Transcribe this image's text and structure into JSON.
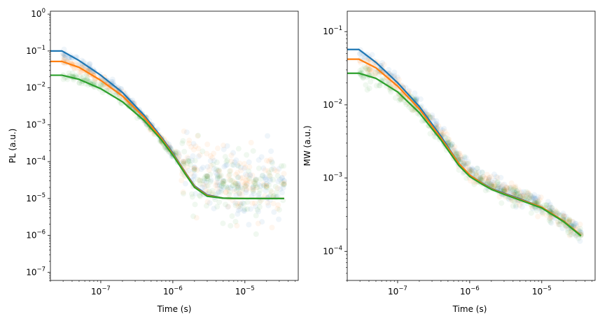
{
  "colors": {
    "series": [
      "#1f77b4",
      "#ff7f0e",
      "#2ca02c"
    ],
    "axis": "#000000",
    "background": "#ffffff"
  },
  "chart_data": [
    {
      "type": "scatter",
      "panel": "left",
      "xlabel": "Time (s)",
      "ylabel": "PL (a.u.)",
      "xscale": "log",
      "yscale": "log",
      "xlim": [
        2e-08,
        5.5e-05
      ],
      "ylim": [
        6e-08,
        1.2
      ],
      "grid": false,
      "legend": "none",
      "x_ticks": [
        {
          "value": 1e-07,
          "base": "10",
          "exp": "−7"
        },
        {
          "value": 1e-06,
          "base": "10",
          "exp": "−6"
        },
        {
          "value": 1e-05,
          "base": "10",
          "exp": "−5"
        }
      ],
      "y_ticks": [
        {
          "value": 1e-07,
          "base": "10",
          "exp": "−7"
        },
        {
          "value": 1e-06,
          "base": "10",
          "exp": "−6"
        },
        {
          "value": 1e-05,
          "base": "10",
          "exp": "−5"
        },
        {
          "value": 0.0001,
          "base": "10",
          "exp": "−4"
        },
        {
          "value": 0.001,
          "base": "10",
          "exp": "−3"
        },
        {
          "value": 0.01,
          "base": "10",
          "exp": "−2"
        },
        {
          "value": 0.1,
          "base": "10",
          "exp": "−1"
        },
        {
          "value": 1,
          "base": "10",
          "exp": "0"
        }
      ],
      "series": [
        {
          "color": "#1f77b4",
          "fit_x": [
            2e-08,
            2.9e-08,
            5e-08,
            1e-07,
            2e-07,
            4e-07,
            7e-07,
            1e-06,
            1.5e-06,
            2e-06,
            3e-06,
            5e-06,
            1e-05,
            3.5e-05
          ],
          "fit_y": [
            0.1,
            0.1,
            0.055,
            0.022,
            0.0075,
            0.0018,
            0.00045,
            0.00017,
            5e-05,
            2.2e-05,
            1.25e-05,
            1.02e-05,
            1e-05,
            1e-05
          ],
          "scatter_x": [
            3e-08,
            4e-08,
            6e-08,
            8e-08,
            1.2e-07,
            1.8e-07,
            2.5e-07,
            3.5e-07,
            5e-07,
            7e-07,
            1e-06,
            1.4e-06,
            2e-06,
            3e-06,
            5e-06,
            8e-06,
            1.3e-05,
            2e-05,
            3.5e-05
          ],
          "scatter_y": [
            0.085,
            0.065,
            0.04,
            0.028,
            0.016,
            0.0085,
            0.0045,
            0.0022,
            0.0009,
            0.0004,
            0.00018,
            0.0001,
            7e-05,
            4e-05,
            3e-05,
            2.5e-05,
            2e-05,
            2.5e-05,
            3e-05
          ]
        },
        {
          "color": "#ff7f0e",
          "fit_x": [
            2e-08,
            2.9e-08,
            5e-08,
            1e-07,
            2e-07,
            4e-07,
            7e-07,
            1e-06,
            1.5e-06,
            2e-06,
            3e-06,
            5e-06,
            1e-05,
            3.5e-05
          ],
          "fit_y": [
            0.052,
            0.052,
            0.036,
            0.016,
            0.006,
            0.0016,
            0.00042,
            0.00016,
            4.8e-05,
            2.1e-05,
            1.2e-05,
            1.02e-05,
            1e-05,
            1e-05
          ],
          "scatter_x": [
            3e-08,
            4e-08,
            6e-08,
            8e-08,
            1.2e-07,
            1.8e-07,
            2.5e-07,
            3.5e-07,
            5e-07,
            7e-07,
            1e-06,
            1.4e-06,
            2e-06,
            3e-06,
            5e-06,
            8e-06,
            1.3e-05,
            2e-05,
            3.5e-05
          ],
          "scatter_y": [
            0.05,
            0.042,
            0.03,
            0.021,
            0.013,
            0.0072,
            0.004,
            0.002,
            0.00085,
            0.00038,
            0.00017,
            0.0001,
            6.5e-05,
            4e-05,
            2.8e-05,
            2.2e-05,
            1.8e-05,
            2.2e-05,
            2.6e-05
          ]
        },
        {
          "color": "#2ca02c",
          "fit_x": [
            2e-08,
            2.9e-08,
            5e-08,
            1e-07,
            2e-07,
            4e-07,
            7e-07,
            1e-06,
            1.5e-06,
            2e-06,
            3e-06,
            5e-06,
            1e-05,
            3.5e-05
          ],
          "fit_y": [
            0.022,
            0.022,
            0.017,
            0.0095,
            0.0042,
            0.0013,
            0.00038,
            0.00015,
            4.5e-05,
            2e-05,
            1.15e-05,
            1.02e-05,
            1e-05,
            1e-05
          ],
          "scatter_x": [
            3e-08,
            4e-08,
            6e-08,
            8e-08,
            1.2e-07,
            1.8e-07,
            2.5e-07,
            3.5e-07,
            5e-07,
            7e-07,
            1e-06,
            1.4e-06,
            2e-06,
            3e-06,
            5e-06,
            8e-06,
            1.3e-05,
            2e-05,
            3.5e-05
          ],
          "scatter_y": [
            0.022,
            0.02,
            0.016,
            0.012,
            0.0085,
            0.0052,
            0.0031,
            0.0017,
            0.00075,
            0.00035,
            0.00016,
            9e-05,
            6e-05,
            3.5e-05,
            2.5e-05,
            2e-05,
            1.6e-05,
            2e-05,
            2.4e-05
          ]
        }
      ]
    },
    {
      "type": "scatter",
      "panel": "right",
      "xlabel": "Time (s)",
      "ylabel": "MW (a.u.)",
      "xscale": "log",
      "yscale": "log",
      "xlim": [
        2e-08,
        5.5e-05
      ],
      "ylim": [
        4e-05,
        0.19
      ],
      "grid": false,
      "legend": "none",
      "x_ticks": [
        {
          "value": 1e-07,
          "base": "10",
          "exp": "−7"
        },
        {
          "value": 1e-06,
          "base": "10",
          "exp": "−6"
        },
        {
          "value": 1e-05,
          "base": "10",
          "exp": "−5"
        }
      ],
      "y_ticks": [
        {
          "value": 0.0001,
          "base": "10",
          "exp": "−4"
        },
        {
          "value": 0.001,
          "base": "10",
          "exp": "−3"
        },
        {
          "value": 0.01,
          "base": "10",
          "exp": "−2"
        },
        {
          "value": 0.1,
          "base": "10",
          "exp": "−1"
        }
      ],
      "series": [
        {
          "color": "#1f77b4",
          "fit_x": [
            2e-08,
            2.9e-08,
            5e-08,
            1e-07,
            2e-07,
            4e-07,
            7e-07,
            1e-06,
            1.5e-06,
            2e-06,
            3e-06,
            5e-06,
            1e-05,
            2e-05,
            3.5e-05
          ],
          "fit_y": [
            0.057,
            0.057,
            0.038,
            0.02,
            0.0095,
            0.0037,
            0.0016,
            0.0011,
            0.00085,
            0.00072,
            0.00062,
            0.00052,
            0.0004,
            0.00026,
            0.000165
          ],
          "scatter_x": [
            3e-08,
            4e-08,
            6e-08,
            8e-08,
            1.2e-07,
            1.8e-07,
            2.5e-07,
            3.5e-07,
            5e-07,
            7e-07,
            1e-06,
            1.4e-06,
            2e-06,
            3e-06,
            5e-06,
            8e-06,
            1.3e-05,
            2e-05,
            3.5e-05
          ],
          "scatter_y": [
            0.05,
            0.042,
            0.032,
            0.025,
            0.017,
            0.011,
            0.0075,
            0.0048,
            0.003,
            0.0019,
            0.0013,
            0.001,
            0.00082,
            0.0007,
            0.00057,
            0.00046,
            0.00036,
            0.00027,
            0.00018
          ]
        },
        {
          "color": "#ff7f0e",
          "fit_x": [
            2e-08,
            2.9e-08,
            5e-08,
            1e-07,
            2e-07,
            4e-07,
            7e-07,
            1e-06,
            1.5e-06,
            2e-06,
            3e-06,
            5e-06,
            1e-05,
            2e-05,
            3.5e-05
          ],
          "fit_y": [
            0.042,
            0.042,
            0.032,
            0.018,
            0.0088,
            0.0035,
            0.0016,
            0.0011,
            0.00084,
            0.00071,
            0.00061,
            0.00051,
            0.0004,
            0.00026,
            0.000165
          ],
          "scatter_x": [
            3e-08,
            4e-08,
            6e-08,
            8e-08,
            1.2e-07,
            1.8e-07,
            2.5e-07,
            3.5e-07,
            5e-07,
            7e-07,
            1e-06,
            1.4e-06,
            2e-06,
            3e-06,
            5e-06,
            8e-06,
            1.3e-05,
            2e-05,
            3.5e-05
          ],
          "scatter_y": [
            0.04,
            0.035,
            0.028,
            0.022,
            0.015,
            0.0098,
            0.0068,
            0.0044,
            0.0028,
            0.0018,
            0.00125,
            0.00097,
            0.0008,
            0.00068,
            0.00056,
            0.00045,
            0.00035,
            0.00026,
            0.00017
          ]
        },
        {
          "color": "#2ca02c",
          "fit_x": [
            2e-08,
            2.9e-08,
            5e-08,
            1e-07,
            2e-07,
            4e-07,
            7e-07,
            1e-06,
            1.5e-06,
            2e-06,
            3e-06,
            5e-06,
            1e-05,
            2e-05,
            3.5e-05
          ],
          "fit_y": [
            0.027,
            0.027,
            0.023,
            0.015,
            0.0078,
            0.0033,
            0.0015,
            0.00105,
            0.00082,
            0.0007,
            0.0006,
            0.0005,
            0.00039,
            0.000255,
            0.000162
          ],
          "scatter_x": [
            3e-08,
            4e-08,
            6e-08,
            8e-08,
            1.2e-07,
            1.8e-07,
            2.5e-07,
            3.5e-07,
            5e-07,
            7e-07,
            1e-06,
            1.4e-06,
            2e-06,
            3e-06,
            5e-06,
            8e-06,
            1.3e-05,
            2e-05,
            3.5e-05
          ],
          "scatter_y": [
            0.027,
            0.025,
            0.021,
            0.017,
            0.013,
            0.0088,
            0.0062,
            0.0041,
            0.0027,
            0.00175,
            0.0012,
            0.00095,
            0.00078,
            0.00066,
            0.00055,
            0.00044,
            0.00034,
            0.00025,
            0.000165
          ]
        }
      ]
    }
  ]
}
